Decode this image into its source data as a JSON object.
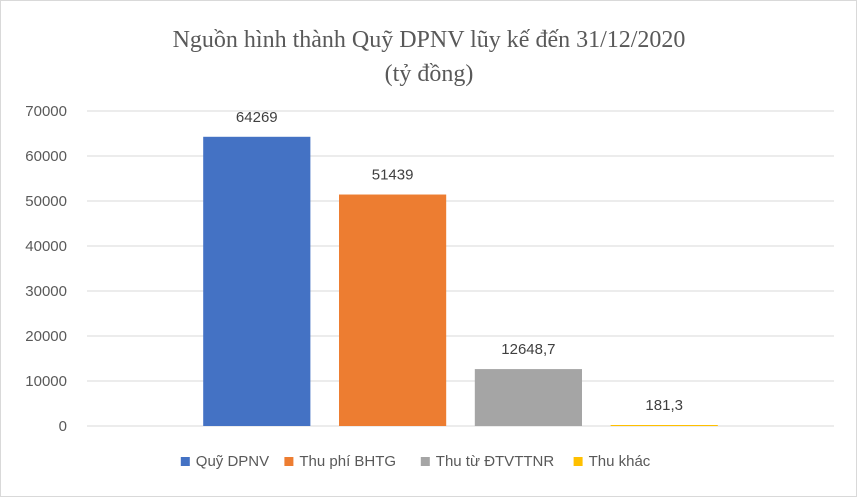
{
  "chart_data": {
    "type": "bar",
    "title": "Nguồn hình thành Quỹ DPNV lũy kế đến 31/12/2020",
    "subtitle": "(tỷ đồng)",
    "xlabel": "",
    "ylabel": "",
    "ylim": [
      0,
      70000
    ],
    "yticks": [
      0,
      10000,
      20000,
      30000,
      40000,
      50000,
      60000,
      70000
    ],
    "grid": true,
    "legend_position": "bottom",
    "series": [
      {
        "name": "Quỹ DPNV",
        "value": 64269,
        "label": "64269",
        "color": "#4472C4"
      },
      {
        "name": "Thu phí BHTG",
        "value": 51439,
        "label": "51439",
        "color": "#ED7D31"
      },
      {
        "name": "Thu từ ĐTVTTNR",
        "value": 12648.7,
        "label": "12648,7",
        "color": "#A5A5A5"
      },
      {
        "name": "Thu khác",
        "value": 181.3,
        "label": "181,3",
        "color": "#FFC000"
      }
    ]
  }
}
